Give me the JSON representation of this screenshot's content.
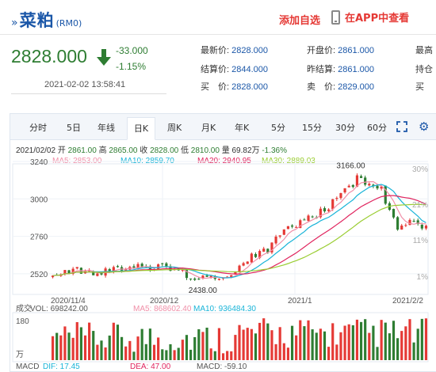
{
  "header": {
    "title_arrow": "»",
    "name": "菜粕",
    "code": "(RM0)",
    "add_favorite": "添加自选",
    "app_link": "在APP中查看"
  },
  "quote": {
    "price": "2828.000",
    "change": "-33.000",
    "change_pct": "-1.15%",
    "timestamp": "2021-02-02 13:58:41",
    "fields": [
      {
        "label": "最新价:",
        "value": "2828.000"
      },
      {
        "label": "开盘价:",
        "value": "2861.000"
      },
      {
        "label": "最高",
        "value": ""
      },
      {
        "label": "结算价:",
        "value": "2844.000"
      },
      {
        "label": "昨结算:",
        "value": "2861.000"
      },
      {
        "label": "持仓",
        "value": ""
      },
      {
        "label": "买　价:",
        "value": "2828.000"
      },
      {
        "label": "卖　价:",
        "value": "2829.000"
      },
      {
        "label": "买",
        "value": ""
      }
    ],
    "colors": {
      "up": "#e53935",
      "down": "#2e7d32",
      "link": "#1b57a8"
    }
  },
  "tabs": [
    "分时",
    "5日",
    "年线",
    "日K",
    "周K",
    "月K",
    "年K",
    "5分",
    "15分",
    "30分",
    "60分"
  ],
  "active_tab": "日K",
  "info_line": {
    "date": "2021/02/02",
    "open_label": "开",
    "open": "2861.00",
    "high_label": "高",
    "high": "2865.00",
    "close_label": "收",
    "close": "2828.00",
    "low_label": "低",
    "low": "2810.00",
    "vol_label": "量",
    "vol": "69.82万",
    "pct": "-1.36%"
  },
  "ma_legend": {
    "ma5": "MA5: 2853.00",
    "ma10": "MA10: 2859.70",
    "ma20": "MA20: 2940.95",
    "ma30": "MA30: 2889.03"
  },
  "chart_data": {
    "type": "candlestick",
    "y_ticks": [
      "3240",
      "3000",
      "2760",
      "2520"
    ],
    "pct_ticks": [
      "30%",
      "21%",
      "11%",
      "1%"
    ],
    "ylim": [
      2438,
      3240
    ],
    "x_labels": [
      "2020/11/4",
      "2020/12",
      "2021/1",
      "2021/2/2"
    ],
    "annotations": {
      "max": "3166.00",
      "min": "2438.00"
    },
    "closes": [
      2508,
      2512,
      2516,
      2544,
      2520,
      2552,
      2563,
      2520,
      2541,
      2542,
      2510,
      2522,
      2515,
      2554,
      2532,
      2563,
      2563,
      2538,
      2549,
      2564,
      2559,
      2582,
      2566,
      2562,
      2546,
      2550,
      2580,
      2582,
      2567,
      2539,
      2549,
      2542,
      2545,
      2493,
      2488,
      2481,
      2483,
      2508,
      2500,
      2506,
      2487,
      2488,
      2496,
      2501,
      2511,
      2533,
      2572,
      2588,
      2598,
      2649,
      2627,
      2666,
      2681,
      2655,
      2720,
      2758,
      2766,
      2804,
      2825,
      2822,
      2819,
      2863,
      2866,
      2893,
      2887,
      2881,
      2937,
      2920,
      2932,
      2998,
      3006,
      3037,
      3068,
      3084,
      3077,
      3151,
      3134,
      3091,
      3097,
      3081,
      3067,
      3079,
      2969,
      2930,
      2881,
      2803,
      2829,
      2832,
      2865,
      2858,
      2839,
      2810,
      2828
    ],
    "volume_label": "成交",
    "vol": "VOL: 698242.00",
    "vol_ma5": "MA5: 868602.40",
    "vol_ma10": "MA10: 936484.30",
    "vol_ticks": [
      "180",
      "万"
    ],
    "macd_label": "MACD",
    "dif": "DIF: 17.45",
    "dea": "DEA: 47.00",
    "macd": "MACD: -59.10"
  }
}
